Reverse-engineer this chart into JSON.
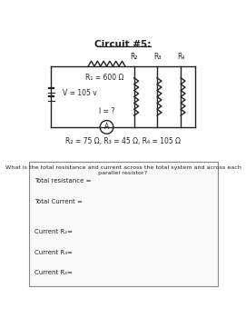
{
  "title": "Circuit #5:",
  "r1_label": "R₁ = 600 Ω",
  "v_label": "V = 105 v",
  "i_label": "I = ?",
  "r_values_label": "R₂ = 75 Ω, R₃ = 45 Ω, R₄ = 105 Ω",
  "r2_label": "R₂",
  "r3_label": "R₃",
  "r4_label": "R₄",
  "question": "What is the total resistance and current across the total system and across each parallel resistor?",
  "blanks": [
    "Total resistance =",
    "Total Current =",
    "Current R₂=",
    "Current R₃=",
    "Current R₄="
  ],
  "bg_color": "#ffffff",
  "line_color": "#222222"
}
